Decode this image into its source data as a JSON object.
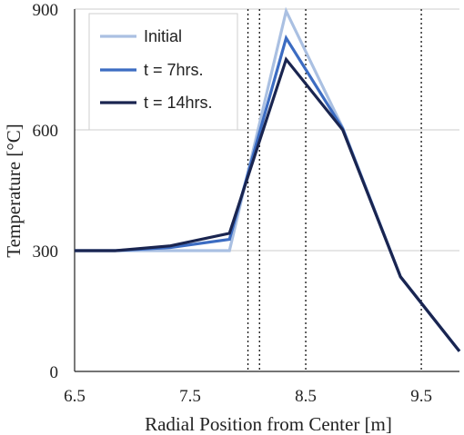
{
  "chart_data": {
    "type": "line",
    "title": "",
    "xlabel": "Radial Position from Center [m]",
    "ylabel": "Temperature [°C]",
    "xlim": [
      6.5,
      9.83
    ],
    "ylim": [
      0,
      900
    ],
    "x_ticks": [
      "6.5",
      "7.5",
      "8.5",
      "9.5"
    ],
    "x_tick_values": [
      6.5,
      7.5,
      8.5,
      9.5
    ],
    "y_ticks": [
      "0",
      "300",
      "600",
      "900"
    ],
    "y_tick_values": [
      0,
      300,
      600,
      900
    ],
    "grid": "horizontal",
    "legend_position": "top-left",
    "vertical_markers": [
      8.0,
      8.1,
      8.5,
      9.5
    ],
    "x": [
      6.5,
      6.85,
      7.33,
      7.84,
      8.33,
      8.82,
      9.32,
      9.83
    ],
    "series": [
      {
        "name": "Initial",
        "color": "#aac0e2",
        "values": [
          300,
          300,
          300,
          300,
          895,
          605,
          235,
          50
        ]
      },
      {
        "name": "t = 7hrs.",
        "color": "#3c6cc2",
        "values": [
          300,
          300,
          308,
          328,
          828,
          603,
          235,
          50
        ]
      },
      {
        "name": "t = 14hrs.",
        "color": "#1a2550",
        "values": [
          300,
          300,
          312,
          343,
          775,
          600,
          235,
          50
        ]
      }
    ]
  }
}
